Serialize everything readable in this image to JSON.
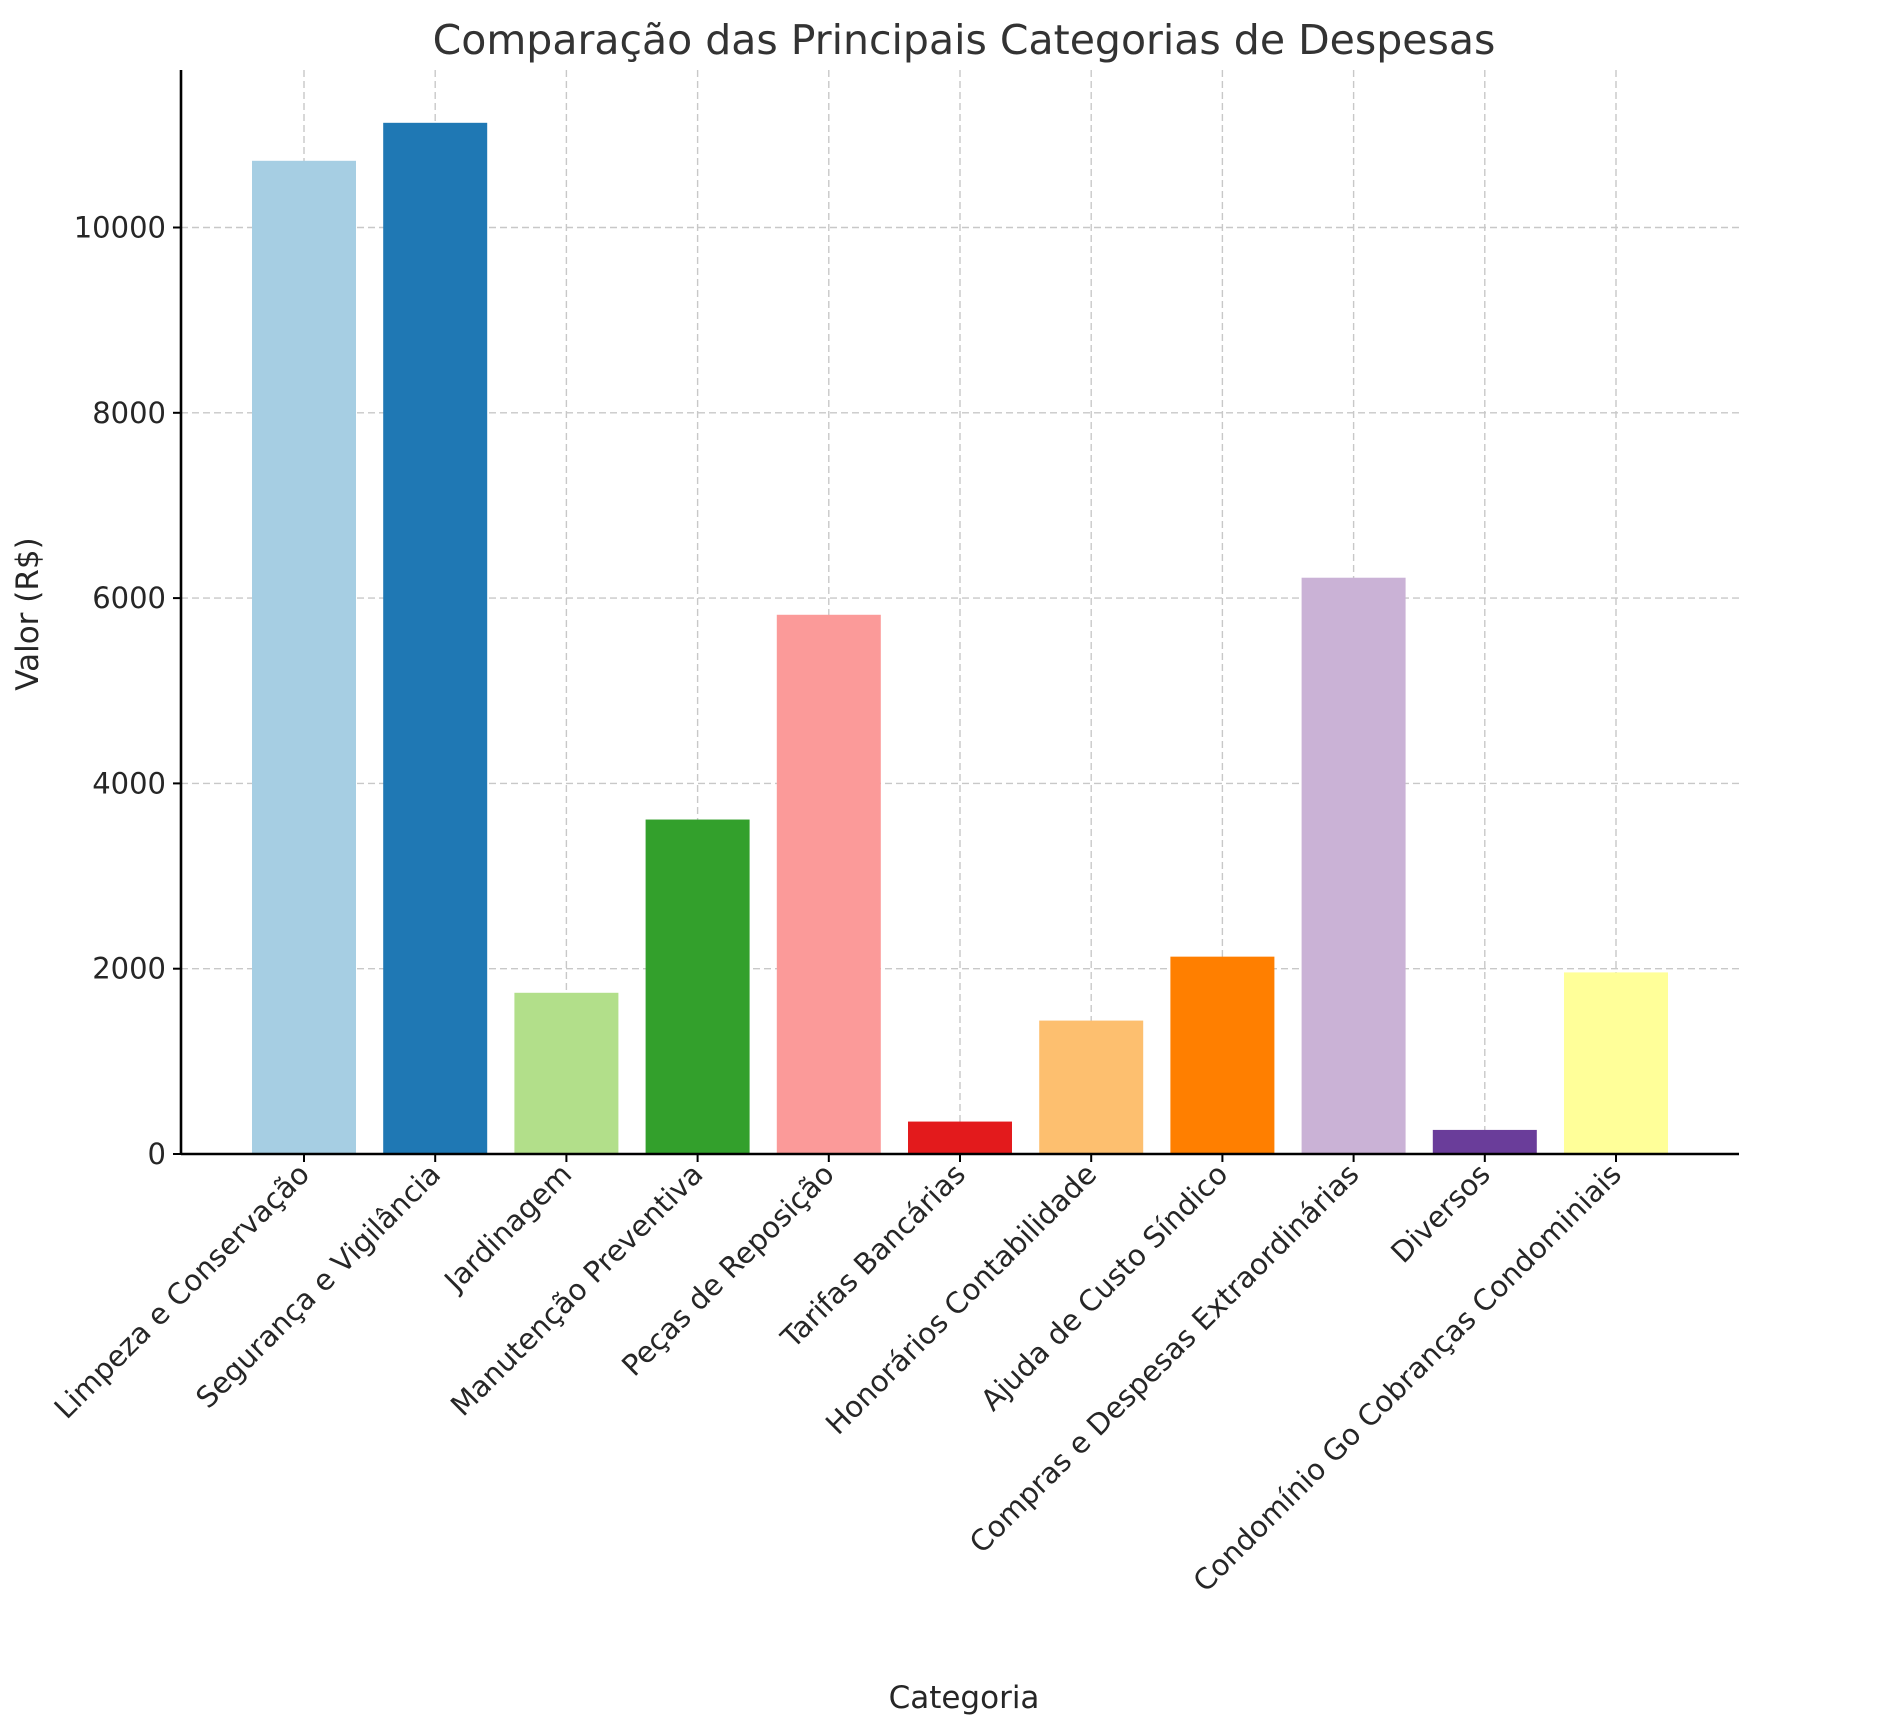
{
  "chart_data": {
    "type": "bar",
    "title": "Comparação das Principais Categorias de Despesas",
    "xlabel": "Categoria",
    "ylabel": "Valor (R$)",
    "ylim": [
      0,
      11700
    ],
    "yticks": [
      0,
      2000,
      4000,
      6000,
      8000,
      10000
    ],
    "grid": true,
    "categories": [
      "Limpeza e Conservação",
      "Segurança e Vigilância",
      "Jardinagem",
      "Manutenção Preventiva",
      "Peças de Reposição",
      "Tarifas Bancárias",
      "Honorários Contabilidade",
      "Ajuda de Custo Síndico",
      "Compras e Despesas Extraordinárias",
      "Diversos",
      "Condomínio Go Cobranças Condominiais"
    ],
    "values": [
      10720,
      11130,
      1740,
      3610,
      5820,
      350,
      1440,
      2130,
      6220,
      260,
      1960
    ],
    "colors": [
      "#a6cee3",
      "#1f78b4",
      "#b2df8a",
      "#33a02c",
      "#fb9a99",
      "#e31a1c",
      "#fdbf6f",
      "#ff7f00",
      "#cab2d6",
      "#6a3d9a",
      "#ffff99"
    ]
  }
}
